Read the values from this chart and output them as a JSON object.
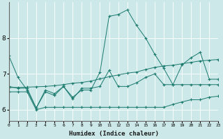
{
  "xlabel": "Humidex (Indice chaleur)",
  "bg_color": "#cce8e8",
  "grid_color": "#ffffff",
  "line_color": "#1a7a6e",
  "xlim": [
    0,
    23
  ],
  "ylim": [
    5.7,
    9.0
  ],
  "yticks": [
    6,
    7,
    8
  ],
  "xticks": [
    0,
    1,
    2,
    3,
    4,
    5,
    6,
    7,
    8,
    9,
    10,
    11,
    12,
    13,
    14,
    15,
    16,
    17,
    18,
    19,
    20,
    21,
    22,
    23
  ],
  "series": {
    "line1_main": {
      "x": [
        0,
        1,
        2,
        3,
        4,
        5,
        6,
        7,
        8,
        9,
        10,
        11,
        12,
        13,
        14,
        15,
        16,
        17,
        18,
        19,
        20,
        21,
        22,
        23
      ],
      "y": [
        7.5,
        6.9,
        6.55,
        6.05,
        6.55,
        6.45,
        6.65,
        6.35,
        6.55,
        6.55,
        7.05,
        8.6,
        8.65,
        8.78,
        8.35,
        8.0,
        7.55,
        7.15,
        6.7,
        7.25,
        7.45,
        7.6,
        6.85,
        6.85
      ]
    },
    "line2_upper": {
      "x": [
        0,
        1,
        2,
        3,
        4,
        5,
        6,
        7,
        8,
        9,
        10,
        11,
        12,
        13,
        14,
        15,
        16,
        17,
        18,
        19,
        20,
        21,
        22,
        23
      ],
      "y": [
        6.65,
        6.6,
        6.6,
        6.05,
        6.5,
        6.4,
        6.65,
        6.3,
        6.6,
        6.6,
        6.65,
        7.1,
        6.65,
        6.65,
        6.75,
        6.9,
        7.0,
        6.7,
        6.7,
        6.7,
        6.7,
        6.7,
        6.7,
        6.7
      ]
    },
    "line3_lower": {
      "x": [
        0,
        1,
        2,
        3,
        4,
        5,
        6,
        7,
        8,
        9,
        10,
        11,
        12,
        13,
        14,
        15,
        16,
        17,
        18,
        19,
        20,
        21,
        22,
        23
      ],
      "y": [
        6.5,
        6.5,
        6.5,
        6.0,
        6.07,
        6.07,
        6.07,
        6.07,
        6.07,
        6.07,
        6.07,
        6.07,
        6.07,
        6.07,
        6.07,
        6.07,
        6.07,
        6.07,
        6.15,
        6.22,
        6.28,
        6.28,
        6.35,
        6.38
      ]
    },
    "line4_trend": {
      "x": [
        0,
        1,
        2,
        3,
        4,
        5,
        6,
        7,
        8,
        9,
        10,
        11,
        12,
        13,
        14,
        15,
        16,
        17,
        18,
        19,
        20,
        21,
        22,
        23
      ],
      "y": [
        6.62,
        6.62,
        6.63,
        6.64,
        6.65,
        6.67,
        6.7,
        6.74,
        6.76,
        6.8,
        6.86,
        6.92,
        6.97,
        7.02,
        7.05,
        7.12,
        7.18,
        7.22,
        7.24,
        7.28,
        7.32,
        7.36,
        7.38,
        7.4
      ]
    }
  },
  "figsize": [
    3.2,
    2.0
  ],
  "dpi": 100
}
